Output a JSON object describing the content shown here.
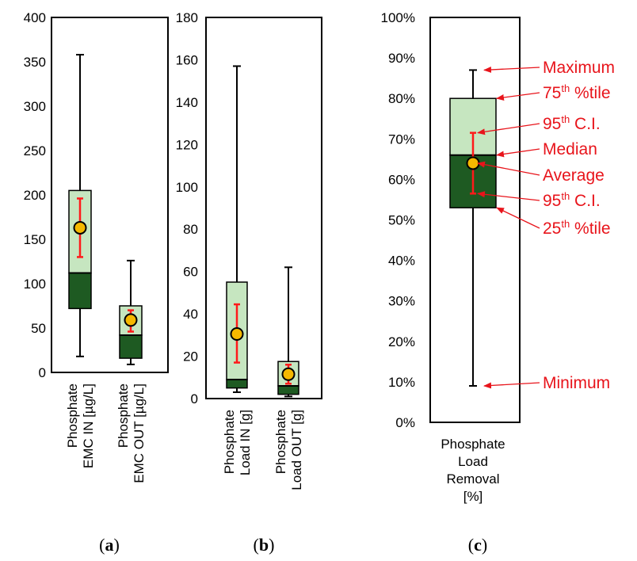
{
  "colors": {
    "q_upper": "#c6e6c0",
    "q_lower": "#1e5a22",
    "ci": "#ff1a1a",
    "mean_fill": "#f5b800",
    "annotation": "#e8141b"
  },
  "chart_data": [
    {
      "type": "box",
      "panel": "a",
      "ylim": [
        0,
        400
      ],
      "yticks": [
        "0",
        "50",
        "100",
        "150",
        "200",
        "250",
        "300",
        "350",
        "400"
      ],
      "ytick_values": [
        0,
        50,
        100,
        150,
        200,
        250,
        300,
        350,
        400
      ],
      "series": [
        {
          "label_lines": [
            "Phosphate",
            "EMC IN [µg/L]"
          ],
          "min": 18,
          "q1": 72,
          "median": 112,
          "q3": 205,
          "max": 358,
          "mean": 163,
          "ci_low": 130,
          "ci_high": 196
        },
        {
          "label_lines": [
            "Phosphate",
            "EMC OUT [µg/L]"
          ],
          "min": 9,
          "q1": 16,
          "median": 42,
          "q3": 75,
          "max": 126,
          "mean": 59,
          "ci_low": 46,
          "ci_high": 70
        }
      ]
    },
    {
      "type": "box",
      "panel": "b",
      "ylim": [
        0,
        180
      ],
      "yticks": [
        "0",
        "20",
        "40",
        "60",
        "80",
        "100",
        "120",
        "140",
        "160",
        "180"
      ],
      "ytick_values": [
        0,
        20,
        40,
        60,
        80,
        100,
        120,
        140,
        160,
        180
      ],
      "series": [
        {
          "label_lines": [
            "Phosphate",
            "Load IN [g]"
          ],
          "min": 3,
          "q1": 5,
          "median": 9,
          "q3": 55,
          "max": 157,
          "mean": 30.5,
          "ci_low": 17,
          "ci_high": 44.5
        },
        {
          "label_lines": [
            "Phosphate",
            "Load OUT [g]"
          ],
          "min": 1,
          "q1": 2,
          "median": 6,
          "q3": 17.5,
          "max": 62,
          "mean": 11.5,
          "ci_low": 7,
          "ci_high": 16
        }
      ]
    },
    {
      "type": "box",
      "panel": "c",
      "ylim": [
        0,
        100
      ],
      "yticks": [
        "0%",
        "10%",
        "20%",
        "30%",
        "40%",
        "50%",
        "60%",
        "70%",
        "80%",
        "90%",
        "100%"
      ],
      "ytick_values": [
        0,
        10,
        20,
        30,
        40,
        50,
        60,
        70,
        80,
        90,
        100
      ],
      "series": [
        {
          "label_lines": [
            "Phosphate",
            "Load",
            "Removal",
            "[%]"
          ],
          "min": 9,
          "q1": 53,
          "median": 66,
          "q3": 80,
          "max": 87,
          "mean": 64,
          "ci_low": 56.5,
          "ci_high": 71.5
        }
      ],
      "annotations": [
        {
          "key": "max",
          "text": "Maximum",
          "sup": "",
          "rest": ""
        },
        {
          "key": "q3",
          "text": "75",
          "sup": "th",
          "rest": " %tile"
        },
        {
          "key": "ci_high",
          "text": "95",
          "sup": "th",
          "rest": " C.I."
        },
        {
          "key": "median",
          "text": "Median",
          "sup": "",
          "rest": ""
        },
        {
          "key": "mean",
          "text": "Average",
          "sup": "",
          "rest": ""
        },
        {
          "key": "ci_low",
          "text": "95",
          "sup": "th",
          "rest": " C.I."
        },
        {
          "key": "q1",
          "text": "25",
          "sup": "th",
          "rest": " %tile"
        },
        {
          "key": "min",
          "text": "Minimum",
          "sup": "",
          "rest": ""
        }
      ]
    }
  ],
  "panel_labels": [
    "a",
    "b",
    "c"
  ]
}
